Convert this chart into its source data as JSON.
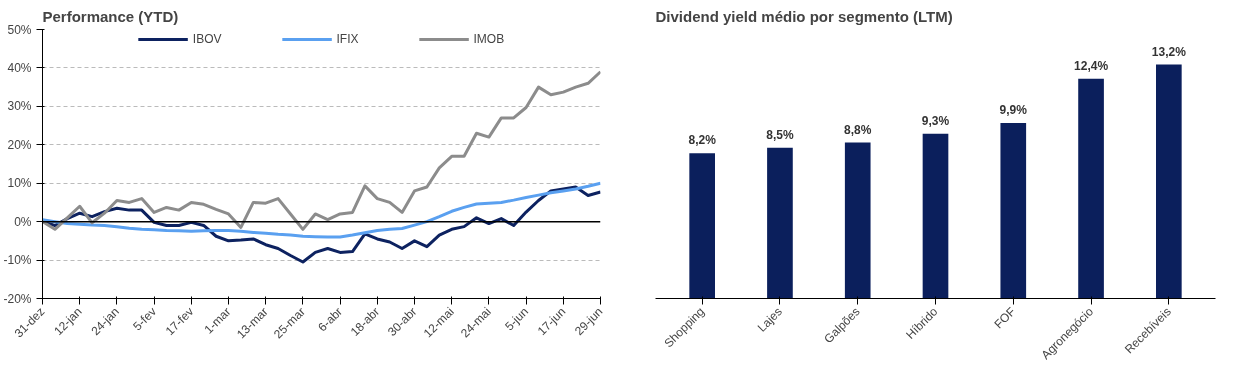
{
  "chart_data": [
    {
      "type": "line",
      "title": "Performance (YTD)",
      "categories": [
        "31-dez",
        null,
        null,
        "12-jan",
        null,
        null,
        "24-jan",
        null,
        null,
        "5-fev",
        null,
        null,
        "17-fev",
        null,
        null,
        "1-mar",
        null,
        null,
        "13-mar",
        null,
        null,
        "25-mar",
        null,
        null,
        "6-abr",
        null,
        null,
        "18-abr",
        null,
        null,
        "30-abr",
        null,
        null,
        "12-mai",
        null,
        null,
        "24-mai",
        null,
        null,
        "5-jun",
        null,
        null,
        "17-jun",
        null,
        null,
        "29-jun"
      ],
      "series": [
        {
          "name": "IBOV",
          "color": "#0d2260",
          "values": [
            0,
            -1,
            0.8,
            2.2,
            1.3,
            2.6,
            3.5,
            3,
            3,
            -0.2,
            -1,
            -1,
            -0.2,
            -1,
            -3.8,
            -5,
            -4.8,
            -4.5,
            -6,
            -7,
            -8.8,
            -10.5,
            -8,
            -7,
            -8,
            -7.8,
            -3.2,
            -4.5,
            -5.3,
            -7,
            -5,
            -6.5,
            -3.5,
            -2,
            -1.3,
            1,
            -0.5,
            0.8,
            -1,
            2.5,
            5.5,
            8,
            8.5,
            9,
            6.8,
            7.7
          ]
        },
        {
          "name": "IFIX",
          "color": "#5aa0f0",
          "values": [
            0.5,
            0,
            -0.5,
            -0.7,
            -0.9,
            -1,
            -1.3,
            -1.7,
            -2,
            -2.1,
            -2.3,
            -2.4,
            -2.5,
            -2.4,
            -2.3,
            -2.3,
            -2.5,
            -2.8,
            -3,
            -3.3,
            -3.5,
            -3.8,
            -3.9,
            -4,
            -4,
            -3.5,
            -2.9,
            -2.3,
            -2,
            -1.8,
            -0.9,
            0,
            1.3,
            2.7,
            3.7,
            4.6,
            4.8,
            5,
            5.6,
            6.3,
            6.9,
            7.5,
            8,
            8.5,
            9.2,
            10
          ]
        },
        {
          "name": "IMOB",
          "color": "#8c8c8c",
          "values": [
            0,
            -2,
            1,
            4,
            -0.3,
            2.2,
            5.5,
            5,
            6,
            2.4,
            3.7,
            3,
            5,
            4.5,
            3.2,
            2,
            -1.5,
            5,
            4.8,
            6,
            2,
            -2,
            2,
            0.5,
            2,
            2.4,
            9.3,
            6,
            5,
            2.4,
            8,
            9,
            14,
            17,
            17,
            23,
            22,
            27,
            27,
            29.7,
            35,
            33,
            33.7,
            35,
            36,
            39
          ]
        }
      ],
      "ylim": [
        -20,
        50
      ],
      "yticks": [
        {
          "value": -20,
          "label": "-20%"
        },
        {
          "value": -10,
          "label": "-10%"
        },
        {
          "value": 0,
          "label": "0%"
        },
        {
          "value": 10,
          "label": "10%"
        },
        {
          "value": 20,
          "label": "20%"
        },
        {
          "value": 30,
          "label": "30%"
        },
        {
          "value": 40,
          "label": "40%"
        },
        {
          "value": 50,
          "label": "50%"
        }
      ],
      "ref_lines": [
        {
          "axis": "y",
          "value": 0,
          "color": "#000000"
        }
      ],
      "grid": "y",
      "line_style": "solid",
      "legend": "top"
    },
    {
      "type": "bar",
      "title": "Dividend yield médio por segmento (LTM)",
      "categories": [
        "Shopping",
        "Lajes",
        "Galpões",
        "Híbrido",
        "FOF",
        "Agronegócio",
        "Recebíveis"
      ],
      "values": [
        8.2,
        8.5,
        8.8,
        9.3,
        9.9,
        12.4,
        13.2
      ],
      "value_labels": [
        "8,2%",
        "8,5%",
        "8,8%",
        "9,3%",
        "9,9%",
        "12,4%",
        "13,2%"
      ],
      "color": "#0b1f5c",
      "grid": false,
      "legend": false
    }
  ]
}
